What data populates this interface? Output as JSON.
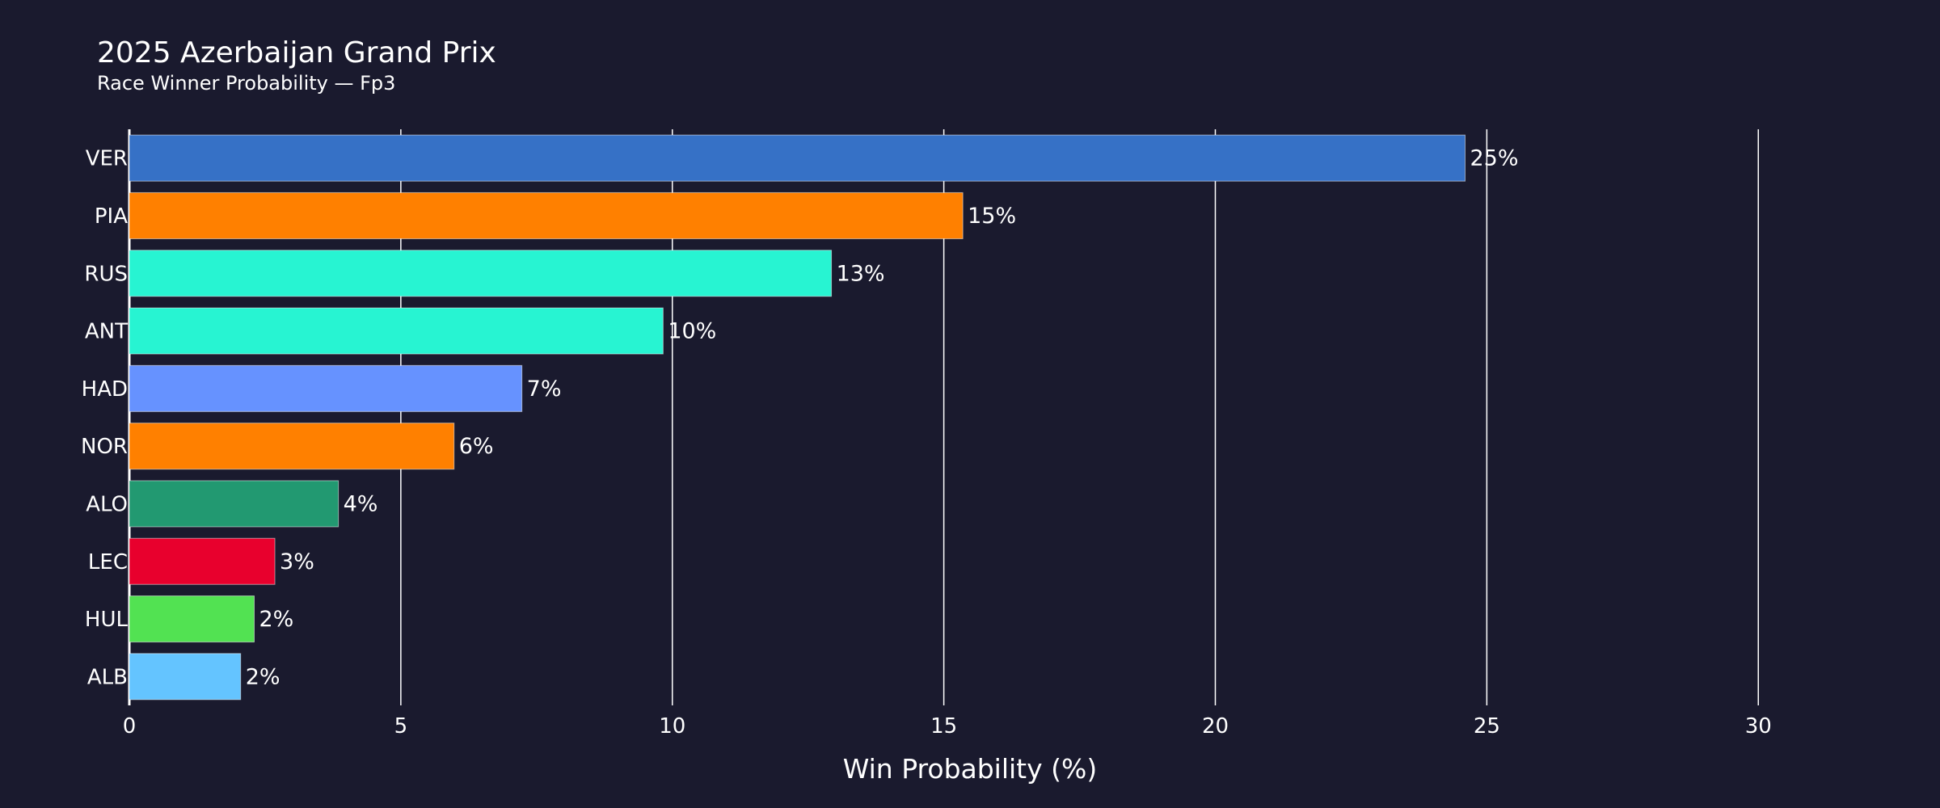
{
  "chart_data": {
    "type": "bar",
    "orientation": "horizontal",
    "title": "2025 Azerbaijan Grand Prix",
    "subtitle": "Race Winner Probability — Fp3",
    "xlabel": "Win Probability (%)",
    "ylabel": "",
    "xlim": [
      0,
      31.5
    ],
    "xticks": [
      0,
      5,
      10,
      15,
      20,
      25,
      30
    ],
    "grid": "vertical",
    "legend": "none",
    "categories": [
      "VER",
      "PIA",
      "RUS",
      "ANT",
      "HAD",
      "NOR",
      "ALO",
      "LEC",
      "HUL",
      "ALB"
    ],
    "values": [
      24.6,
      15.35,
      12.93,
      9.83,
      7.23,
      5.98,
      3.85,
      2.68,
      2.3,
      2.05
    ],
    "data_labels": [
      "25%",
      "15%",
      "13%",
      "10%",
      "7%",
      "6%",
      "4%",
      "3%",
      "2%",
      "2%"
    ],
    "colors": [
      "#3671C6",
      "#FF8000",
      "#27F4D2",
      "#27F4D2",
      "#6692FF",
      "#FF8000",
      "#229971",
      "#E8002D",
      "#52E252",
      "#64C4FF"
    ]
  },
  "theme": {
    "background": "#1a1a2e",
    "text": "#ffffff",
    "grid": "#ffffff"
  }
}
